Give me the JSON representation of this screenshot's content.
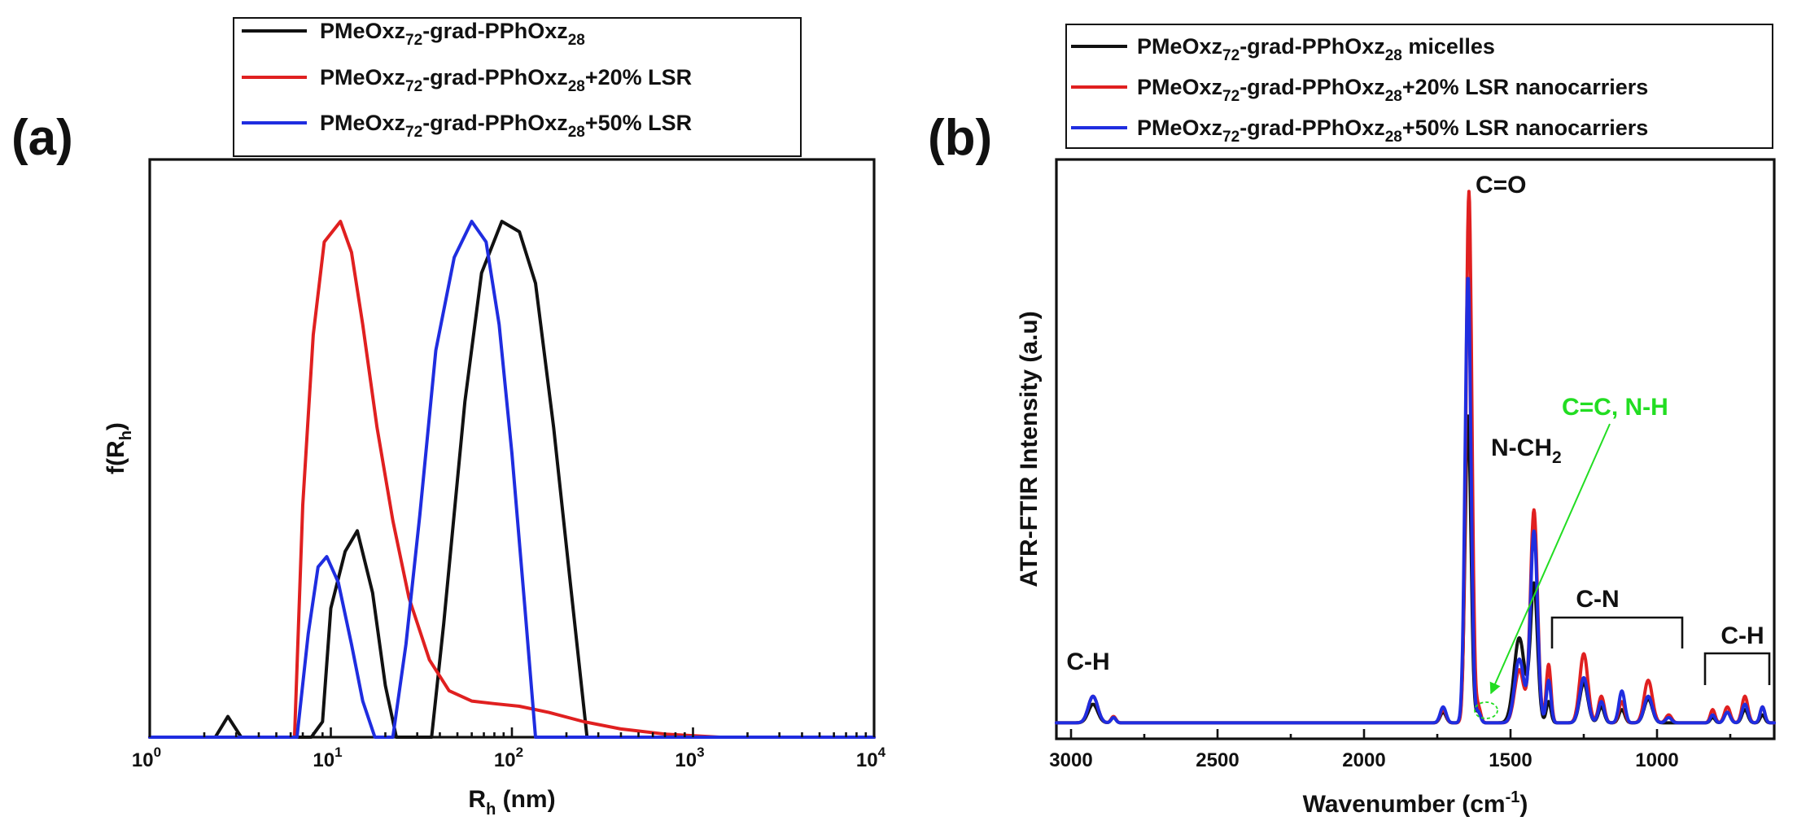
{
  "chart_data": [
    {
      "panel": "(a)",
      "type": "line",
      "xscale": "log",
      "xlabel_base": "R",
      "xlabel_sub": "h",
      "xlabel_unit": " (nm)",
      "ylabel_base": "f(R",
      "ylabel_sub": "h",
      "ylabel_close": ")",
      "xlim": [
        1,
        10000
      ],
      "ylim": [
        0,
        1.12
      ],
      "x_ticks": [
        {
          "base": "10",
          "exp": "0",
          "value": 1
        },
        {
          "base": "10",
          "exp": "1",
          "value": 10
        },
        {
          "base": "10",
          "exp": "2",
          "value": 100
        },
        {
          "base": "10",
          "exp": "3",
          "value": 1000
        },
        {
          "base": "10",
          "exp": "4",
          "value": 10000
        }
      ],
      "legend_position": "top",
      "series": [
        {
          "name": "PMeOxz72-grad-PPhOxz28",
          "label_parts": [
            [
              "PMeOxz",
              ""
            ],
            [
              "72",
              "sub"
            ],
            [
              "-grad-PPhOxz",
              ""
            ],
            [
              "28",
              "sub"
            ]
          ],
          "color": "#111111",
          "points": [
            [
              1,
              0
            ],
            [
              2.3,
              0
            ],
            [
              2.7,
              0.04
            ],
            [
              3.2,
              0
            ],
            [
              7.8,
              0
            ],
            [
              9,
              0.03
            ],
            [
              10,
              0.25
            ],
            [
              12,
              0.36
            ],
            [
              14,
              0.4
            ],
            [
              17,
              0.28
            ],
            [
              20,
              0.1
            ],
            [
              23,
              0
            ],
            [
              36,
              0
            ],
            [
              42,
              0.22
            ],
            [
              55,
              0.65
            ],
            [
              68,
              0.9
            ],
            [
              88,
              1.0
            ],
            [
              110,
              0.98
            ],
            [
              135,
              0.88
            ],
            [
              170,
              0.6
            ],
            [
              210,
              0.3
            ],
            [
              260,
              0
            ],
            [
              10000,
              0
            ]
          ]
        },
        {
          "name": "PMeOxz72-grad-PPhOxz28+20% LSR",
          "label_parts": [
            [
              "PMeOxz",
              ""
            ],
            [
              "72",
              "sub"
            ],
            [
              "-grad-PPhOxz",
              ""
            ],
            [
              "28",
              "sub"
            ],
            [
              "+20% LSR",
              ""
            ]
          ],
          "color": "#e02020",
          "points": [
            [
              1,
              0
            ],
            [
              6.3,
              0
            ],
            [
              7,
              0.45
            ],
            [
              8,
              0.78
            ],
            [
              9.2,
              0.96
            ],
            [
              11.3,
              1.0
            ],
            [
              13,
              0.94
            ],
            [
              15,
              0.8
            ],
            [
              18,
              0.6
            ],
            [
              22,
              0.42
            ],
            [
              27,
              0.27
            ],
            [
              35,
              0.15
            ],
            [
              45,
              0.09
            ],
            [
              60,
              0.07
            ],
            [
              80,
              0.065
            ],
            [
              110,
              0.06
            ],
            [
              160,
              0.048
            ],
            [
              250,
              0.03
            ],
            [
              400,
              0.016
            ],
            [
              700,
              0.006
            ],
            [
              1400,
              0
            ],
            [
              10000,
              0
            ]
          ]
        },
        {
          "name": "PMeOxz72-grad-PPhOxz28+50% LSR",
          "label_parts": [
            [
              "PMeOxz",
              ""
            ],
            [
              "72",
              "sub"
            ],
            [
              "-grad-PPhOxz",
              ""
            ],
            [
              "28",
              "sub"
            ],
            [
              "+50% LSR",
              ""
            ]
          ],
          "color": "#1f2de0",
          "points": [
            [
              1,
              0
            ],
            [
              6.5,
              0
            ],
            [
              7.5,
              0.2
            ],
            [
              8.5,
              0.33
            ],
            [
              9.5,
              0.35
            ],
            [
              11,
              0.3
            ],
            [
              13,
              0.18
            ],
            [
              15,
              0.07
            ],
            [
              17.5,
              0
            ],
            [
              22,
              0
            ],
            [
              26,
              0.18
            ],
            [
              31,
              0.43
            ],
            [
              38,
              0.75
            ],
            [
              48,
              0.93
            ],
            [
              60,
              1.0
            ],
            [
              72,
              0.96
            ],
            [
              85,
              0.8
            ],
            [
              100,
              0.55
            ],
            [
              118,
              0.25
            ],
            [
              135,
              0
            ],
            [
              10000,
              0
            ]
          ]
        }
      ]
    },
    {
      "panel": "(b)",
      "type": "line",
      "xlabel": "Wavenumber (cm",
      "xlabel_sup": "-1",
      "xlabel_close": ")",
      "ylabel": "ATR-FTIR Intensity (a.u)",
      "xlim": [
        3050,
        600
      ],
      "ylim": [
        -0.03,
        1.06
      ],
      "x_ticks": [
        3000,
        2500,
        2000,
        1500,
        1000
      ],
      "legend_position": "top",
      "annotations": {
        "co": "C=O",
        "nch_base": "N-CH",
        "nch_sub": "2",
        "cc_nh": "C=C, N-H",
        "cn": "C-N",
        "ch_left": "C-H",
        "ch_right": "C-H",
        "green": "#22dd22"
      },
      "series": [
        {
          "name": "PMeOxz72-grad-PPhOxz28 micelles",
          "label_parts": [
            [
              "PMeOxz",
              ""
            ],
            [
              "72",
              "sub"
            ],
            [
              "-grad-PPhOxz",
              ""
            ],
            [
              "28",
              "sub"
            ],
            [
              " micelles",
              ""
            ]
          ],
          "color": "#111111",
          "baseline": 0,
          "peaks": [
            [
              2925,
              0.035,
              16
            ],
            [
              2855,
              0.01,
              8
            ],
            [
              1730,
              0.02,
              10
            ],
            [
              1645,
              0.58,
              10
            ],
            [
              1610,
              0.02,
              8
            ],
            [
              1470,
              0.16,
              18
            ],
            [
              1420,
              0.26,
              12
            ],
            [
              1370,
              0.04,
              8
            ],
            [
              1250,
              0.075,
              14
            ],
            [
              1190,
              0.03,
              10
            ],
            [
              1120,
              0.025,
              10
            ],
            [
              1030,
              0.045,
              14
            ],
            [
              810,
              0.01,
              8
            ],
            [
              760,
              0.02,
              10
            ],
            [
              700,
              0.025,
              10
            ],
            [
              640,
              0.015,
              8
            ]
          ]
        },
        {
          "name": "PMeOxz72-grad-PPhOxz28+20% LSR nanocarriers",
          "label_parts": [
            [
              "PMeOxz",
              ""
            ],
            [
              "72",
              "sub"
            ],
            [
              "-grad-PPhOxz",
              ""
            ],
            [
              "28",
              "sub"
            ],
            [
              "+20% LSR nanocarriers",
              ""
            ]
          ],
          "color": "#e02020",
          "baseline": 0,
          "peaks": [
            [
              2925,
              0.05,
              16
            ],
            [
              2855,
              0.012,
              8
            ],
            [
              1730,
              0.025,
              10
            ],
            [
              1642,
              1.0,
              10
            ],
            [
              1610,
              0.03,
              8
            ],
            [
              1470,
              0.1,
              16
            ],
            [
              1420,
              0.4,
              12
            ],
            [
              1370,
              0.11,
              8
            ],
            [
              1250,
              0.13,
              14
            ],
            [
              1190,
              0.05,
              10
            ],
            [
              1120,
              0.04,
              10
            ],
            [
              1030,
              0.08,
              14
            ],
            [
              960,
              0.015,
              10
            ],
            [
              810,
              0.025,
              8
            ],
            [
              760,
              0.03,
              10
            ],
            [
              700,
              0.05,
              10
            ],
            [
              640,
              0.03,
              8
            ]
          ]
        },
        {
          "name": "PMeOxz72-grad-PPhOxz28+50% LSR nanocarriers",
          "label_parts": [
            [
              "PMeOxz",
              ""
            ],
            [
              "72",
              "sub"
            ],
            [
              "-grad-PPhOxz",
              ""
            ],
            [
              "28",
              "sub"
            ],
            [
              "+50% LSR nanocarriers",
              ""
            ]
          ],
          "color": "#1f2de0",
          "baseline": 0,
          "peaks": [
            [
              2925,
              0.05,
              16
            ],
            [
              2855,
              0.01,
              8
            ],
            [
              1730,
              0.03,
              10
            ],
            [
              1645,
              0.84,
              10
            ],
            [
              1610,
              0.02,
              8
            ],
            [
              1470,
              0.12,
              16
            ],
            [
              1420,
              0.36,
              12
            ],
            [
              1370,
              0.08,
              8
            ],
            [
              1250,
              0.085,
              14
            ],
            [
              1190,
              0.04,
              10
            ],
            [
              1120,
              0.06,
              10
            ],
            [
              1030,
              0.05,
              14
            ],
            [
              960,
              0.01,
              10
            ],
            [
              810,
              0.015,
              8
            ],
            [
              760,
              0.02,
              10
            ],
            [
              700,
              0.035,
              10
            ],
            [
              640,
              0.03,
              8
            ]
          ]
        }
      ]
    }
  ]
}
